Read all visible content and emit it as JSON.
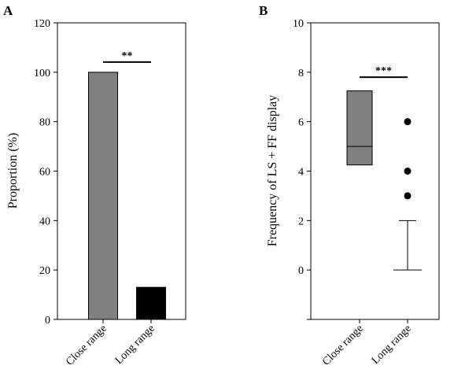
{
  "chart_data": [
    {
      "panel": "A",
      "type": "bar",
      "categories": [
        "Close range",
        "Long range"
      ],
      "values": [
        100,
        13
      ],
      "colors": [
        "#808080",
        "#000000"
      ],
      "ylabel": "Proportion (%)",
      "ylim": [
        0,
        120
      ],
      "yticks": [
        "0",
        "20",
        "40",
        "60",
        "80",
        "100",
        "120"
      ],
      "significance": {
        "label": "**",
        "between": [
          0,
          1
        ]
      },
      "grid": false
    },
    {
      "panel": "B",
      "type": "box",
      "categories": [
        "Close range",
        "Long range"
      ],
      "boxes": [
        {
          "q1": 4.25,
          "median": 5,
          "q3": 7.25,
          "color": "#808080"
        },
        {
          "q1": 0,
          "median": 0,
          "q3": 0,
          "whisker_low": 0,
          "whisker_high": 2,
          "outliers": [
            3,
            4,
            6
          ]
        }
      ],
      "ylabel": "Frequency of LS + FF display",
      "ylim": [
        -2,
        10
      ],
      "yticks": [
        "0",
        "2",
        "4",
        "6",
        "8",
        "10"
      ],
      "significance": {
        "label": "***",
        "between": [
          0,
          1
        ]
      },
      "grid": false
    }
  ]
}
